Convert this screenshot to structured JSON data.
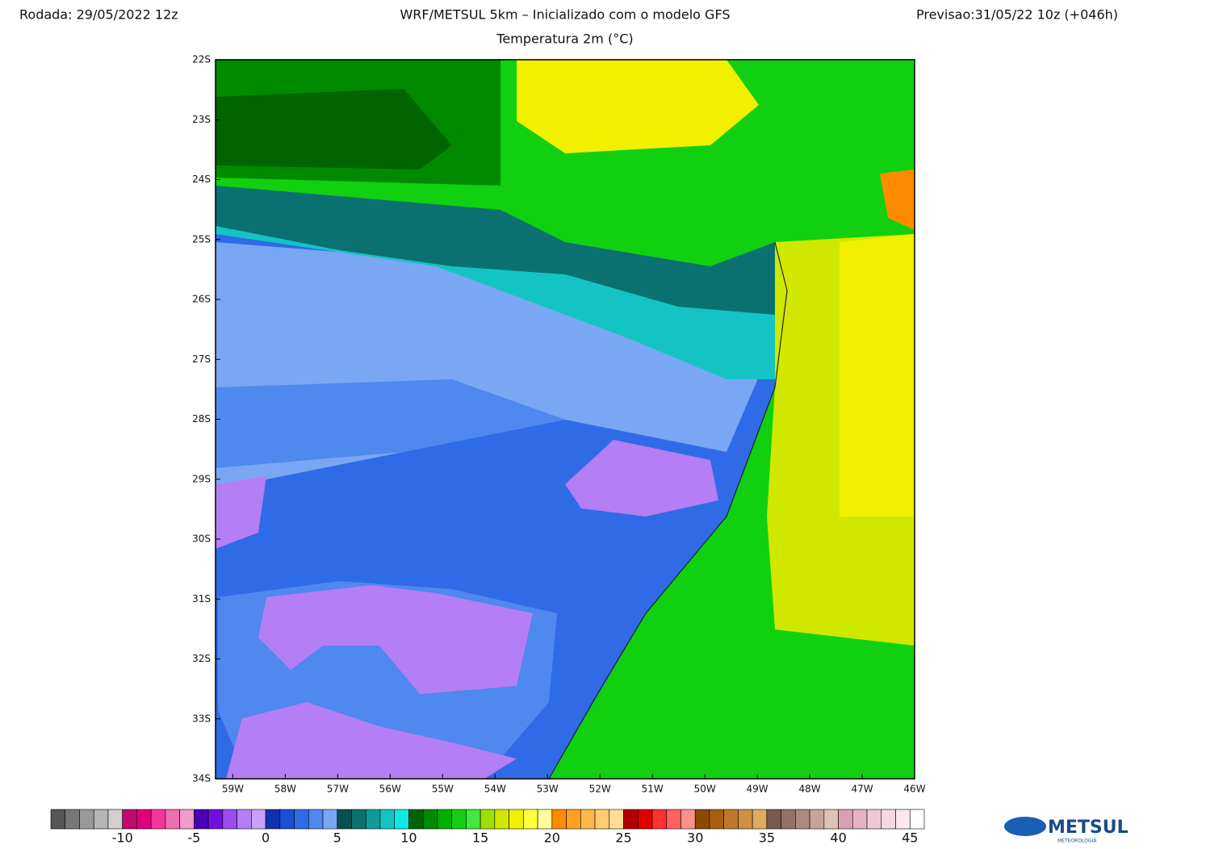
{
  "header": {
    "run": "Rodada: 29/05/2022 12z",
    "model": "WRF/METSUL 5km – Inicializado com o modelo GFS",
    "forecast": "Previsao:31/05/22 10z (+046h)",
    "subtitle": "Temperatura 2m (°C)"
  },
  "map": {
    "xlim": [
      -59.33,
      -46
    ],
    "ylim": [
      -34,
      -22
    ],
    "xticks": [
      {
        "value": -59,
        "label": "59W"
      },
      {
        "value": -58,
        "label": "58W"
      },
      {
        "value": -57,
        "label": "57W"
      },
      {
        "value": -56,
        "label": "56W"
      },
      {
        "value": -55,
        "label": "55W"
      },
      {
        "value": -54,
        "label": "54W"
      },
      {
        "value": -53,
        "label": "53W"
      },
      {
        "value": -52,
        "label": "52W"
      },
      {
        "value": -51,
        "label": "51W"
      },
      {
        "value": -50,
        "label": "50W"
      },
      {
        "value": -49,
        "label": "49W"
      },
      {
        "value": -48,
        "label": "48W"
      },
      {
        "value": -47,
        "label": "47W"
      },
      {
        "value": -46,
        "label": "46W"
      }
    ],
    "yticks": [
      {
        "value": -22,
        "label": "22S"
      },
      {
        "value": -23,
        "label": "23S"
      },
      {
        "value": -24,
        "label": "24S"
      },
      {
        "value": -25,
        "label": "25S"
      },
      {
        "value": -26,
        "label": "26S"
      },
      {
        "value": -27,
        "label": "27S"
      },
      {
        "value": -28,
        "label": "28S"
      },
      {
        "value": -29,
        "label": "29S"
      },
      {
        "value": -30,
        "label": "30S"
      },
      {
        "value": -31,
        "label": "31S"
      },
      {
        "value": -32,
        "label": "32S"
      },
      {
        "value": -33,
        "label": "33S"
      },
      {
        "value": -34,
        "label": "34S"
      }
    ]
  },
  "colorbar": {
    "range": [
      -15,
      46
    ],
    "ticks": [
      -10,
      -5,
      0,
      5,
      10,
      15,
      20,
      25,
      30,
      35,
      40,
      45
    ],
    "colors": [
      "#555555",
      "#777777",
      "#999999",
      "#b5b5b5",
      "#d0d0d0",
      "#c0086e",
      "#e0007f",
      "#f5369c",
      "#f06db0",
      "#f39ac6",
      "#4b00b4",
      "#7010e0",
      "#9a4cf0",
      "#b47ef5",
      "#c9a0f7",
      "#1030b0",
      "#1a4fd6",
      "#2f6be6",
      "#4f88ef",
      "#7aa7f3",
      "#0a4f4f",
      "#0b7070",
      "#109a9a",
      "#14c4c4",
      "#10e8e8",
      "#006400",
      "#008a00",
      "#00b000",
      "#10d010",
      "#40e840",
      "#a0e000",
      "#d0e800",
      "#f0f000",
      "#ffff40",
      "#ffffa0",
      "#ff8c00",
      "#ffa020",
      "#ffb848",
      "#ffcc70",
      "#ffdd99",
      "#b40000",
      "#e00000",
      "#ff3030",
      "#ff6060",
      "#ff9090",
      "#8b4a00",
      "#a86010",
      "#c07828",
      "#d09040",
      "#e0aa60",
      "#7a5a50",
      "#957065",
      "#ad8a80",
      "#c5a59a",
      "#ddc2b8",
      "#d8a0b0",
      "#e5b5c5",
      "#f0c8d5",
      "#f5d8e2",
      "#fae8ee",
      "#ffffff"
    ]
  },
  "logo": {
    "name": "METSUL",
    "tagline": "METEOROLOGIA"
  }
}
